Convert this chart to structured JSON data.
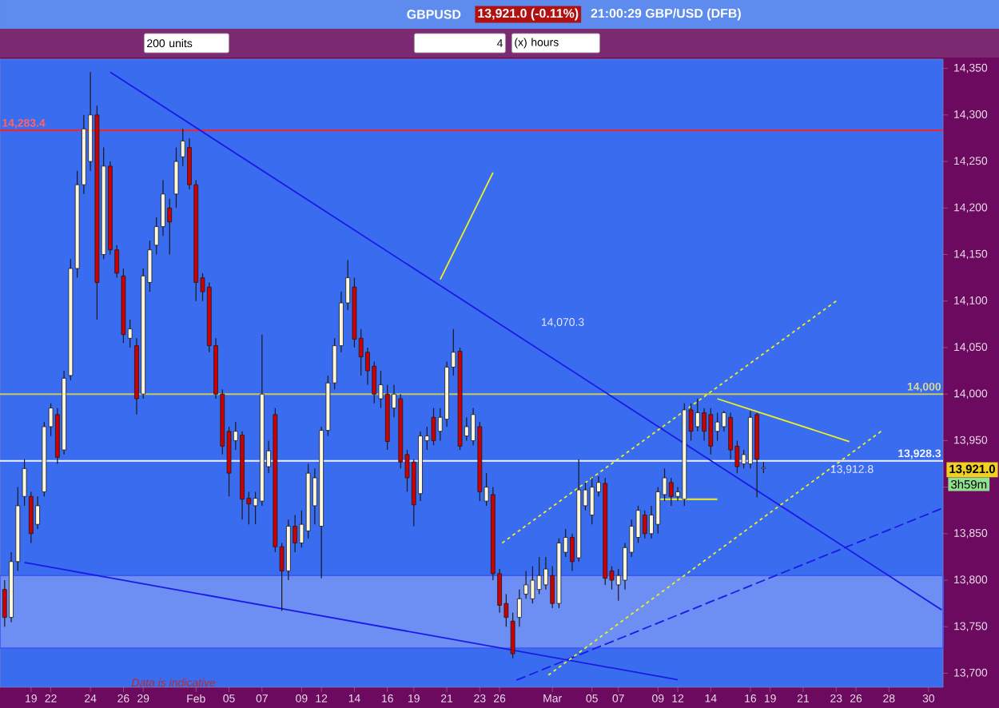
{
  "chart_data": {
    "type": "candlestick",
    "title": "GBPUSD",
    "subtitle": "21:00:29 GBP/USD (DFB)",
    "categories": [
      null,
      null,
      null,
      null,
      "19",
      null,
      null,
      "22",
      null,
      null,
      null,
      null,
      null,
      "24",
      null,
      null,
      null,
      null,
      "26",
      null,
      null,
      "29",
      null,
      null,
      null,
      null,
      null,
      null,
      null,
      "Feb",
      null,
      null,
      null,
      null,
      "05",
      null,
      null,
      null,
      null,
      "07",
      null,
      null,
      null,
      null,
      null,
      "09",
      null,
      null,
      "12",
      null,
      null,
      null,
      null,
      "14",
      null,
      null,
      null,
      null,
      "16",
      null,
      null,
      null,
      "19",
      null,
      null,
      null,
      null,
      "21",
      null,
      null,
      null,
      null,
      "23",
      null,
      null,
      "26",
      null,
      null,
      null,
      null,
      null,
      null,
      null,
      "Mar",
      null,
      null,
      null,
      null,
      null,
      "05",
      null,
      null,
      null,
      "07",
      null,
      null,
      null,
      null,
      null,
      "09",
      null,
      null,
      "12",
      null,
      null,
      null,
      null,
      "14",
      null,
      null,
      null,
      null,
      null,
      "16",
      null,
      null,
      "19",
      null,
      null,
      null,
      null,
      "21",
      null,
      null,
      null,
      null,
      "23",
      null,
      null,
      "26",
      null,
      null,
      null,
      null,
      "28",
      null,
      null,
      null,
      null,
      null,
      "30",
      null,
      null
    ],
    "ohlc": [
      [
        13790,
        13800,
        13750,
        13760
      ],
      [
        13760,
        13830,
        13755,
        13820
      ],
      [
        13820,
        13900,
        13810,
        13880
      ],
      [
        13890,
        13930,
        13880,
        13920
      ],
      [
        13890,
        13895,
        13840,
        13850
      ],
      [
        13860,
        13890,
        13855,
        13880
      ],
      [
        13895,
        13970,
        13890,
        13965
      ],
      [
        13965,
        13990,
        13955,
        13985
      ],
      [
        13978,
        13985,
        13925,
        13932
      ],
      [
        13940,
        14025,
        13935,
        14017
      ],
      [
        14020,
        14145,
        14015,
        14135
      ],
      [
        14135,
        14240,
        14125,
        14225
      ],
      [
        14225,
        14300,
        14215,
        14285
      ],
      [
        14250,
        14346,
        14240,
        14300
      ],
      [
        14300,
        14310,
        14080,
        14120
      ],
      [
        14150,
        14265,
        14145,
        14245
      ],
      [
        14245,
        14250,
        14150,
        14155
      ],
      [
        14155,
        14160,
        14125,
        14130
      ],
      [
        14127,
        14135,
        14055,
        14064
      ],
      [
        14060,
        14080,
        14050,
        14070
      ],
      [
        14052,
        14060,
        13978,
        13995
      ],
      [
        14000,
        14135,
        13995,
        14127
      ],
      [
        14120,
        14165,
        14110,
        14155
      ],
      [
        14160,
        14190,
        14150,
        14180
      ],
      [
        14180,
        14230,
        14170,
        14215
      ],
      [
        14200,
        14210,
        14150,
        14185
      ],
      [
        14215,
        14265,
        14200,
        14250
      ],
      [
        14255,
        14285,
        14245,
        14272
      ],
      [
        14265,
        14275,
        14220,
        14225
      ],
      [
        14225,
        14230,
        14100,
        14120
      ],
      [
        14125,
        14130,
        14100,
        14110
      ],
      [
        14115,
        14120,
        14045,
        14052
      ],
      [
        14052,
        14060,
        13995,
        14000
      ],
      [
        14000,
        14005,
        13935,
        13944
      ],
      [
        13960,
        13965,
        13890,
        13915
      ],
      [
        13950,
        13970,
        13940,
        13960
      ],
      [
        13956,
        13960,
        13865,
        13887
      ],
      [
        13888,
        13895,
        13860,
        13882
      ],
      [
        13880,
        13895,
        13860,
        13888
      ],
      [
        13885,
        14064,
        13880,
        14000
      ],
      [
        13922,
        13950,
        13915,
        13939
      ],
      [
        13978,
        13985,
        13830,
        13836
      ],
      [
        13836,
        13840,
        13767,
        13810
      ],
      [
        13810,
        13865,
        13800,
        13858
      ],
      [
        13858,
        13870,
        13830,
        13840
      ],
      [
        13840,
        13875,
        13835,
        13860
      ],
      [
        13853,
        13925,
        13845,
        13915
      ],
      [
        13880,
        13920,
        13860,
        13910
      ],
      [
        13858,
        13965,
        13802,
        13961
      ],
      [
        13961,
        14020,
        13955,
        14012
      ],
      [
        14012,
        14060,
        14005,
        14052
      ],
      [
        14052,
        14110,
        14045,
        14098
      ],
      [
        14098,
        14144,
        14090,
        14125
      ],
      [
        14115,
        14125,
        14050,
        14059
      ],
      [
        14060,
        14070,
        14020,
        14040
      ],
      [
        14045,
        14050,
        14010,
        14025
      ],
      [
        14030,
        14035,
        13990,
        14000
      ],
      [
        13995,
        14025,
        13985,
        14010
      ],
      [
        14000,
        14010,
        13940,
        13949
      ],
      [
        13985,
        14010,
        13975,
        14000
      ],
      [
        13995,
        14000,
        13920,
        13927
      ],
      [
        13935,
        13940,
        13895,
        13910
      ],
      [
        13927,
        13930,
        13858,
        13881
      ],
      [
        13893,
        13960,
        13885,
        13955
      ],
      [
        13950,
        13965,
        13940,
        13955
      ],
      [
        13975,
        13985,
        13945,
        13950
      ],
      [
        13960,
        13985,
        13950,
        13975
      ],
      [
        13973,
        14035,
        13965,
        14029
      ],
      [
        14029,
        14070,
        14020,
        14045
      ],
      [
        14046,
        14050,
        13940,
        13944
      ],
      [
        13955,
        13975,
        13950,
        13965
      ],
      [
        13950,
        13985,
        13945,
        13978
      ],
      [
        13965,
        13970,
        13885,
        13895
      ],
      [
        13885,
        13915,
        13880,
        13900
      ],
      [
        13892,
        13900,
        13800,
        13807
      ],
      [
        13807,
        13812,
        13765,
        13773
      ],
      [
        13775,
        13785,
        13750,
        13760
      ],
      [
        13756,
        13765,
        13716,
        13721
      ],
      [
        13760,
        13790,
        13750,
        13780
      ],
      [
        13785,
        13810,
        13780,
        13795
      ],
      [
        13780,
        13815,
        13775,
        13800
      ],
      [
        13790,
        13825,
        13785,
        13805
      ],
      [
        13795,
        13825,
        13790,
        13812
      ],
      [
        13805,
        13815,
        13770,
        13775
      ],
      [
        13775,
        13845,
        13770,
        13840
      ],
      [
        13830,
        13855,
        13825,
        13846
      ],
      [
        13846,
        13850,
        13810,
        13820
      ],
      [
        13824,
        13930,
        13820,
        13897
      ],
      [
        13880,
        13905,
        13875,
        13897
      ],
      [
        13870,
        13910,
        13860,
        13900
      ],
      [
        13895,
        13912,
        13890,
        13905
      ],
      [
        13904,
        13910,
        13795,
        13802
      ],
      [
        13810,
        13815,
        13790,
        13800
      ],
      [
        13795,
        13812,
        13778,
        13805
      ],
      [
        13800,
        13840,
        13790,
        13835
      ],
      [
        13830,
        13865,
        13825,
        13858
      ],
      [
        13846,
        13880,
        13840,
        13875
      ],
      [
        13870,
        13875,
        13845,
        13850
      ],
      [
        13850,
        13880,
        13845,
        13870
      ],
      [
        13860,
        13900,
        13850,
        13895
      ],
      [
        13892,
        13920,
        13885,
        13910
      ],
      [
        13905,
        13910,
        13880,
        13890
      ],
      [
        13890,
        13900,
        13885,
        13895
      ],
      [
        13887,
        13990,
        13880,
        13983
      ],
      [
        13983,
        13990,
        13950,
        13960
      ],
      [
        13965,
        13995,
        13960,
        13980
      ],
      [
        13980,
        13985,
        13950,
        13960
      ],
      [
        13978,
        13985,
        13935,
        13944
      ],
      [
        13960,
        13980,
        13950,
        13970
      ],
      [
        13965,
        13982,
        13960,
        13980
      ],
      [
        13975,
        13980,
        13930,
        13940
      ],
      [
        13944,
        13950,
        13915,
        13922
      ],
      [
        13925,
        13940,
        13920,
        13935
      ],
      [
        13925,
        13982,
        13920,
        13975
      ],
      [
        13978,
        13980,
        13889,
        13930
      ],
      [
        13920,
        13927,
        13915,
        13921
      ],
      null,
      null,
      null,
      null,
      null,
      null,
      null,
      null,
      null,
      null,
      null,
      null,
      null,
      null,
      null,
      null,
      null,
      null,
      null,
      null,
      null,
      null,
      null,
      null,
      null,
      null,
      null
    ],
    "colors": [
      "#cc0000",
      "#fff8dc",
      "#fff8dc",
      "#fff8dc",
      "#cc0000",
      "#fff8dc",
      "#fff8dc",
      "#fff8dc",
      "#cc0000",
      "#fff8dc",
      "#fff8dc",
      "#fff8dc",
      "#fff8dc",
      "#fff8dc",
      "#cc0000",
      "#fff8dc",
      "#cc0000",
      "#cc0000",
      "#cc0000",
      "#fff8dc",
      "#cc0000",
      "#fff8dc",
      "#fff8dc",
      "#fff8dc",
      "#fff8dc",
      "#cc0000",
      "#fff8dc",
      "#fff8dc",
      "#cc0000",
      "#cc0000",
      "#cc0000",
      "#cc0000",
      "#cc0000",
      "#cc0000",
      "#cc0000",
      "#fff8dc",
      "#cc0000",
      "#cc0000",
      "#fff8dc",
      "#fff8dc",
      "#fff8dc",
      "#cc0000",
      "#cc0000",
      "#fff8dc",
      "#cc0000",
      "#fff8dc",
      "#fff8dc",
      "#fff8dc",
      "#fff8dc",
      "#fff8dc",
      "#fff8dc",
      "#fff8dc",
      "#fff8dc",
      "#cc0000",
      "#cc0000",
      "#cc0000",
      "#cc0000",
      "#fff8dc",
      "#cc0000",
      "#fff8dc",
      "#cc0000",
      "#cc0000",
      "#cc0000",
      "#fff8dc",
      "#fff8dc",
      "#cc0000",
      "#fff8dc",
      "#fff8dc",
      "#fff8dc",
      "#cc0000",
      "#fff8dc",
      "#fff8dc",
      "#cc0000",
      "#fff8dc",
      "#cc0000",
      "#cc0000",
      "#cc0000",
      "#cc0000",
      "#fff8dc",
      "#fff8dc",
      "#fff8dc",
      "#fff8dc",
      "#fff8dc",
      "#cc0000",
      "#fff8dc",
      "#fff8dc",
      "#cc0000",
      "#fff8dc",
      "#fff8dc",
      "#fff8dc",
      "#fff8dc",
      "#cc0000",
      "#cc0000",
      "#fff8dc",
      "#fff8dc",
      "#fff8dc",
      "#fff8dc",
      "#cc0000",
      "#fff8dc",
      "#fff8dc",
      "#fff8dc",
      "#cc0000",
      "#fff8dc",
      "#fff8dc",
      "#cc0000",
      "#fff8dc",
      "#cc0000",
      "#cc0000",
      "#fff8dc",
      "#fff8dc",
      "#cc0000",
      "#cc0000",
      "#fff8dc",
      "#fff8dc",
      "#cc0000",
      "#fff8dc",
      null,
      null,
      null,
      null,
      null,
      null,
      null,
      null,
      null,
      null,
      null,
      null,
      null,
      null,
      null,
      null,
      null,
      null,
      null,
      null,
      null,
      null,
      null,
      null,
      null,
      null,
      null
    ],
    "series": [
      {
        "type": "line",
        "color": "#1a1ae6",
        "line_style": "solid",
        "values": [
          null,
          null,
          null,
          null,
          null,
          null,
          null,
          null,
          null,
          null,
          null,
          null,
          null,
          null,
          null,
          null,
          14346,
          null,
          null,
          null,
          null,
          null,
          null,
          null,
          null,
          null,
          null,
          null,
          null,
          null,
          null,
          null,
          null,
          null,
          null,
          null,
          null,
          null,
          null,
          null,
          null,
          null,
          null,
          null,
          null,
          null,
          null,
          null,
          null,
          null,
          null,
          null,
          null,
          null,
          null,
          null,
          null,
          null,
          null,
          null,
          null,
          null,
          null,
          null,
          null,
          null,
          null,
          null,
          null,
          null,
          null,
          null,
          null,
          null,
          null,
          null,
          null,
          null,
          null,
          null,
          null,
          null,
          null,
          null,
          null,
          null,
          null,
          null,
          null,
          null,
          null,
          null,
          null,
          null,
          null,
          null,
          null,
          null,
          null,
          null,
          null,
          null,
          null,
          null,
          null,
          null,
          null,
          null,
          null,
          null,
          null,
          null,
          null,
          null,
          null,
          null,
          null,
          null,
          null,
          null,
          null,
          null,
          null,
          null,
          null,
          null,
          null,
          null,
          null,
          null,
          null,
          null,
          null,
          null,
          null,
          null,
          null,
          null,
          null,
          null,
          null,
          null,
          13768
        ]
      },
      {
        "type": "line",
        "color": "#1a1ae6",
        "line_style": "solid",
        "values": [
          null,
          null,
          null,
          13819,
          null,
          null,
          null,
          null,
          null,
          null,
          null,
          null,
          null,
          null,
          null,
          null,
          null,
          null,
          null,
          null,
          null,
          null,
          null,
          null,
          null,
          null,
          null,
          null,
          null,
          null,
          null,
          null,
          null,
          null,
          null,
          null,
          null,
          null,
          null,
          null,
          null,
          null,
          null,
          null,
          null,
          null,
          null,
          null,
          null,
          null,
          null,
          null,
          null,
          null,
          null,
          null,
          null,
          null,
          null,
          null,
          null,
          null,
          null,
          null,
          null,
          null,
          null,
          null,
          null,
          null,
          null,
          null,
          null,
          null,
          null,
          null,
          null,
          null,
          null,
          null,
          null,
          null,
          null,
          null,
          null,
          null,
          null,
          null,
          null,
          null,
          null,
          null,
          null,
          null,
          null,
          null,
          null,
          null,
          null,
          null,
          null,
          null,
          13693,
          null,
          null,
          null,
          null,
          null,
          null,
          null,
          null,
          null,
          null,
          null,
          null,
          null,
          null,
          null,
          null,
          null,
          null,
          null,
          null,
          null,
          null,
          null,
          null,
          null,
          null,
          null,
          null,
          null,
          null,
          null,
          null,
          null,
          null,
          null,
          null,
          null,
          null,
          null,
          null
        ]
      },
      {
        "type": "line",
        "color": "#1a1ae6",
        "line_style": "dashed",
        "values": [
          null,
          null,
          null,
          null,
          null,
          null,
          null,
          null,
          null,
          null,
          null,
          null,
          null,
          null,
          null,
          null,
          null,
          null,
          null,
          null,
          null,
          null,
          null,
          null,
          null,
          null,
          null,
          null,
          null,
          null,
          null,
          null,
          null,
          null,
          null,
          null,
          null,
          null,
          null,
          null,
          null,
          null,
          null,
          null,
          null,
          null,
          null,
          null,
          null,
          null,
          null,
          null,
          null,
          null,
          null,
          null,
          null,
          null,
          null,
          null,
          null,
          null,
          null,
          null,
          null,
          null,
          null,
          null,
          null,
          null,
          null,
          null,
          null,
          null,
          null,
          null,
          null,
          13691,
          null,
          null,
          null,
          null,
          null,
          null,
          null,
          null,
          null,
          null,
          null,
          null,
          null,
          null,
          null,
          null,
          null,
          null,
          null,
          null,
          null,
          null,
          null,
          null,
          null,
          null,
          null,
          null,
          null,
          null,
          null,
          null,
          null,
          null,
          null,
          null,
          null,
          null,
          null,
          null,
          null,
          null,
          null,
          null,
          null,
          null,
          null,
          null,
          null,
          null,
          null,
          null,
          null,
          null,
          null,
          null,
          null,
          null,
          null,
          null,
          null,
          null,
          null,
          null,
          13877
        ]
      },
      {
        "type": "line",
        "color": "#f0f020",
        "line_style": "dotted",
        "values": [
          null,
          null,
          null,
          null,
          null,
          null,
          null,
          null,
          null,
          null,
          null,
          null,
          null,
          null,
          null,
          null,
          null,
          null,
          null,
          null,
          null,
          null,
          null,
          null,
          null,
          null,
          null,
          null,
          null,
          null,
          null,
          null,
          null,
          null,
          null,
          null,
          null,
          null,
          null,
          null,
          null,
          null,
          null,
          null,
          null,
          null,
          null,
          null,
          null,
          null,
          null,
          null,
          null,
          null,
          null,
          null,
          null,
          null,
          null,
          null,
          null,
          null,
          null,
          null,
          null,
          null,
          null,
          null,
          null,
          null,
          null,
          null,
          null,
          null,
          null,
          13838,
          null,
          null,
          null,
          null,
          null,
          null,
          null,
          null,
          null,
          null,
          null,
          null,
          null,
          null,
          null,
          null,
          null,
          null,
          null,
          null,
          null,
          null,
          null,
          null,
          null,
          null,
          null,
          null,
          null,
          null,
          null,
          null,
          null,
          null,
          null,
          null,
          null,
          null,
          null,
          null,
          null,
          null,
          null,
          null,
          null,
          null,
          null,
          null,
          null,
          null,
          14100,
          null,
          null,
          null,
          null,
          null,
          null,
          null,
          null,
          null,
          null,
          null,
          null,
          null,
          null,
          null,
          null
        ]
      },
      {
        "type": "line",
        "color": "#f0f020",
        "line_style": "dotted",
        "values": [
          null,
          null,
          null,
          null,
          null,
          null,
          null,
          null,
          null,
          null,
          null,
          null,
          null,
          null,
          null,
          null,
          null,
          null,
          null,
          null,
          null,
          null,
          null,
          null,
          null,
          null,
          null,
          null,
          null,
          null,
          null,
          null,
          null,
          null,
          null,
          null,
          null,
          null,
          null,
          null,
          null,
          null,
          null,
          null,
          null,
          null,
          null,
          null,
          null,
          null,
          null,
          null,
          null,
          null,
          null,
          null,
          null,
          null,
          null,
          null,
          null,
          null,
          null,
          null,
          null,
          null,
          null,
          null,
          null,
          null,
          null,
          null,
          null,
          null,
          null,
          null,
          null,
          null,
          null,
          null,
          null,
          null,
          13696,
          null,
          null,
          null,
          null,
          null,
          null,
          null,
          null,
          null,
          null,
          null,
          null,
          null,
          null,
          null,
          null,
          null,
          null,
          null,
          null,
          null,
          null,
          null,
          null,
          null,
          null,
          null,
          null,
          null,
          null,
          null,
          null,
          null,
          null,
          null,
          null,
          null,
          null,
          null,
          null,
          null,
          null,
          null,
          null,
          null,
          null,
          null,
          null,
          null,
          null,
          13961,
          null,
          null,
          null,
          null,
          null,
          null,
          null,
          null,
          null
        ]
      },
      {
        "type": "line",
        "color": "#f0f020",
        "line_style": "solid",
        "values": [
          null,
          null,
          null,
          null,
          null,
          null,
          null,
          null,
          null,
          null,
          null,
          null,
          null,
          null,
          null,
          null,
          null,
          null,
          null,
          null,
          null,
          null,
          null,
          null,
          null,
          null,
          null,
          null,
          null,
          null,
          null,
          null,
          null,
          null,
          null,
          null,
          null,
          null,
          null,
          null,
          null,
          null,
          null,
          null,
          null,
          null,
          null,
          null,
          null,
          null,
          null,
          null,
          null,
          null,
          null,
          null,
          null,
          null,
          null,
          null,
          null,
          null,
          null,
          null,
          null,
          null,
          null,
          null,
          null,
          null,
          null,
          null,
          null,
          null,
          null,
          null,
          null,
          null,
          null,
          null,
          null,
          null,
          null,
          null,
          null,
          null,
          null,
          null,
          null,
          null,
          null,
          null,
          null,
          null,
          null,
          null,
          null,
          null,
          null,
          null,
          null,
          null,
          null,
          null,
          null,
          null,
          null,
          null,
          13995,
          null,
          null,
          null,
          null,
          null,
          null,
          null,
          null,
          null,
          null,
          null,
          null,
          null,
          null,
          null,
          null,
          null,
          null,
          null,
          13949,
          null,
          null,
          null,
          null,
          null,
          null,
          null,
          null,
          null,
          null,
          null,
          null,
          null,
          null
        ]
      },
      {
        "type": "line",
        "color": "#f0f020",
        "line_style": "solid",
        "values": [
          null,
          null,
          null,
          null,
          null,
          null,
          null,
          null,
          null,
          null,
          null,
          null,
          null,
          null,
          null,
          null,
          null,
          null,
          null,
          null,
          null,
          null,
          null,
          null,
          null,
          null,
          null,
          null,
          null,
          null,
          null,
          null,
          null,
          null,
          null,
          null,
          null,
          null,
          null,
          null,
          null,
          null,
          null,
          null,
          null,
          null,
          null,
          null,
          null,
          null,
          null,
          null,
          null,
          null,
          null,
          null,
          null,
          null,
          null,
          null,
          null,
          null,
          null,
          null,
          null,
          null,
          14123,
          null,
          null,
          null,
          null,
          null,
          null,
          null,
          14238,
          null,
          null,
          null,
          null,
          null,
          null,
          null,
          null,
          null,
          null,
          null,
          null,
          null,
          null,
          null,
          null,
          null,
          null,
          null,
          null,
          null,
          null,
          null,
          null,
          null,
          null,
          null,
          null,
          null,
          null,
          null,
          null,
          null,
          null,
          null,
          null,
          null,
          null,
          null,
          null,
          null,
          null,
          null,
          null,
          null,
          null,
          null,
          null,
          null,
          null,
          null,
          null,
          null,
          null,
          null,
          null,
          null,
          null,
          null,
          null,
          null,
          null,
          null,
          null,
          null,
          null,
          null,
          null
        ]
      },
      {
        "type": "line",
        "color": "#f0f020",
        "line_style": "solid",
        "values": [
          null,
          null,
          null,
          null,
          null,
          null,
          null,
          null,
          null,
          null,
          null,
          null,
          null,
          null,
          null,
          null,
          null,
          null,
          null,
          null,
          null,
          null,
          null,
          null,
          null,
          null,
          null,
          null,
          null,
          null,
          null,
          null,
          null,
          null,
          null,
          null,
          null,
          null,
          null,
          null,
          null,
          null,
          null,
          null,
          null,
          null,
          null,
          null,
          null,
          null,
          null,
          null,
          null,
          null,
          null,
          null,
          null,
          null,
          null,
          null,
          null,
          null,
          null,
          null,
          null,
          null,
          null,
          null,
          null,
          null,
          null,
          null,
          null,
          null,
          null,
          null,
          null,
          null,
          null,
          null,
          null,
          null,
          null,
          null,
          null,
          null,
          null,
          null,
          null,
          null,
          null,
          null,
          null,
          null,
          null,
          null,
          null,
          null,
          null,
          13887,
          null,
          null,
          null,
          null,
          null,
          null,
          null,
          null,
          13887,
          null,
          null,
          null,
          null,
          null,
          null,
          null,
          null,
          null,
          null,
          null,
          null,
          null,
          null,
          null,
          null,
          null,
          null,
          null,
          null,
          null,
          null,
          null,
          null,
          null,
          null,
          null,
          null,
          null,
          null,
          null,
          null,
          null,
          null
        ]
      }
    ],
    "ref_lines": [
      {
        "axis": "y",
        "value": 14283.4,
        "label": "14,283.4",
        "color": "#ff2020"
      },
      {
        "axis": "y",
        "value": 14000,
        "label": "14,000",
        "color": "#c8c860"
      },
      {
        "axis": "y",
        "value": 13928.3,
        "label": "13,928.3",
        "color": "#f0f0ff"
      }
    ],
    "bands": [
      {
        "axis": "y",
        "from": 13727,
        "to": 13805,
        "color": "#6d8ef2"
      }
    ],
    "annotations": [
      "13,921.0 (-0.11%)",
      "200 units",
      "4",
      "(x) hours",
      "Data is indicative",
      "3h59m",
      "14,070.3",
      "13,912.8",
      "13,921.0"
    ],
    "ylim": [
      13685,
      14360
    ],
    "yticks": [
      {
        "value": 13700,
        "label": "13,700"
      },
      {
        "value": 13750,
        "label": "13,750"
      },
      {
        "value": 13800,
        "label": "13,800"
      },
      {
        "value": 13850,
        "label": "13,850"
      },
      {
        "value": 13900,
        "label": null
      },
      {
        "value": 13950,
        "label": "13,950"
      },
      {
        "value": 14000,
        "label": "14,000"
      },
      {
        "value": 14050,
        "label": "14,050"
      },
      {
        "value": 14100,
        "label": "14,100"
      },
      {
        "value": 14150,
        "label": "14,150"
      },
      {
        "value": 14200,
        "label": "14,200"
      },
      {
        "value": 14250,
        "label": "14,250"
      },
      {
        "value": 14300,
        "label": "14,300"
      },
      {
        "value": 14350,
        "label": "14,350"
      }
    ]
  }
}
